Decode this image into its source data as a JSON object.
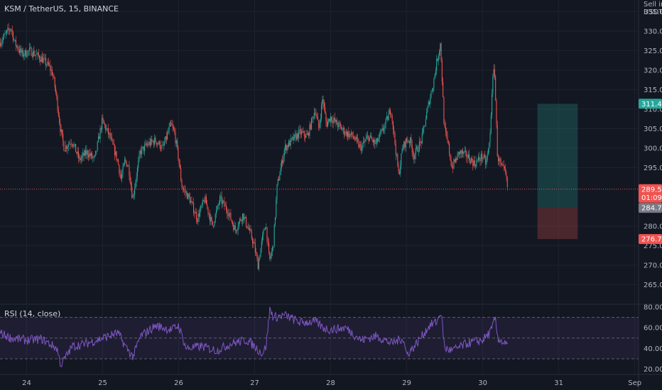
{
  "header": {
    "title": "KSM / TetherUS, 15, BINANCE",
    "currency_line1": "Sell in",
    "currency_line2": "USDT"
  },
  "rsi_panel": {
    "title": "RSI (14, close)"
  },
  "price_tags": {
    "target": "311.4",
    "current": "289.5",
    "countdown": "01:09",
    "entry": "284.7",
    "stop": "276.7"
  },
  "colors": {
    "background": "#131722",
    "up_candle": "#26a69a",
    "down_candle": "#ef5350",
    "rsi_line": "#7e57c2",
    "rsi_band": "#7e57c2",
    "profit_zone": "#26a69a",
    "loss_zone": "#ef5350",
    "tag_target": "#26a69a",
    "tag_current": "#ef5350",
    "tag_entry": "#787b86",
    "tag_stop": "#ef5350"
  },
  "chart_data": [
    {
      "type": "candlestick",
      "title": "KSM / TetherUS, 15, BINANCE",
      "ylabel": "USDT",
      "ylim": [
        260,
        338
      ],
      "y_ticks": [
        265,
        270,
        275,
        280,
        295,
        300,
        305,
        310,
        315,
        320,
        325,
        330,
        335
      ],
      "x_tick_labels": [
        "24",
        "25",
        "26",
        "27",
        "28",
        "29",
        "30",
        "31",
        "Sep"
      ],
      "x_tick_days": [
        24,
        25,
        26,
        27,
        28,
        29,
        30,
        31,
        32
      ],
      "x_range_days": [
        23.65,
        32.05
      ],
      "price_path_days": [
        23.65,
        23.8,
        23.85,
        23.95,
        24.05,
        24.2,
        24.3,
        24.35,
        24.4,
        24.45,
        24.5,
        24.6,
        24.7,
        24.8,
        24.9,
        24.95,
        25.0,
        25.1,
        25.2,
        25.25,
        25.3,
        25.35,
        25.4,
        25.45,
        25.5,
        25.6,
        25.7,
        25.8,
        25.9,
        25.95,
        26.0,
        26.05,
        26.15,
        26.25,
        26.35,
        26.45,
        26.55,
        26.65,
        26.75,
        26.85,
        26.95,
        27.0,
        27.05,
        27.1,
        27.15,
        27.2,
        27.25,
        27.3,
        27.4,
        27.5,
        27.6,
        27.7,
        27.8,
        27.85,
        27.9,
        27.95,
        28.0,
        28.1,
        28.2,
        28.3,
        28.4,
        28.5,
        28.6,
        28.7,
        28.8,
        28.9,
        28.95,
        29.0,
        29.05,
        29.1,
        29.2,
        29.3,
        29.35,
        29.4,
        29.45,
        29.5,
        29.55,
        29.6,
        29.7,
        29.8,
        29.9,
        30.0,
        30.05,
        30.1,
        30.13,
        30.16,
        30.2,
        30.25,
        30.3,
        30.33
      ],
      "price_path_values": [
        327,
        331,
        327,
        324,
        325,
        323,
        321,
        319,
        313,
        305,
        300,
        302,
        297,
        299,
        297,
        302,
        307,
        303,
        297,
        292,
        297,
        295,
        287,
        293,
        299,
        301,
        302,
        300,
        306,
        304,
        298,
        290,
        287,
        282,
        287,
        280,
        287,
        284,
        279,
        283,
        278,
        275,
        270,
        276,
        281,
        271,
        275,
        290,
        300,
        302,
        304,
        303,
        310,
        305,
        313,
        306,
        308,
        306,
        304,
        303,
        300,
        303,
        301,
        305,
        310,
        293,
        300,
        302,
        302,
        298,
        302,
        312,
        316,
        322,
        327,
        305,
        301,
        295,
        299,
        298,
        296,
        298,
        296,
        302,
        316,
        321,
        298,
        295,
        294,
        290
      ],
      "current_price": 289.5,
      "position": {
        "type": "long",
        "target": 311.4,
        "entry": 284.7,
        "stop": 276.7,
        "start_day": 30.72,
        "end_day": 31.25
      }
    },
    {
      "type": "line",
      "title": "RSI (14, close)",
      "ylim": [
        15,
        82
      ],
      "y_ticks": [
        20,
        40,
        60,
        80
      ],
      "bands": [
        30,
        50,
        70
      ],
      "x_range_days": [
        23.65,
        32.05
      ],
      "rsi_path_days": [
        23.65,
        23.8,
        24.0,
        24.2,
        24.4,
        24.45,
        24.6,
        24.8,
        25.0,
        25.2,
        25.3,
        25.4,
        25.5,
        25.7,
        25.9,
        26.0,
        26.1,
        26.3,
        26.5,
        26.7,
        26.9,
        27.0,
        27.1,
        27.15,
        27.2,
        27.25,
        27.4,
        27.6,
        27.8,
        27.9,
        28.0,
        28.2,
        28.4,
        28.6,
        28.8,
        28.95,
        29.0,
        29.1,
        29.3,
        29.4,
        29.45,
        29.5,
        29.6,
        29.8,
        30.0,
        30.05,
        30.12,
        30.16,
        30.2,
        30.33
      ],
      "rsi_path_values": [
        55,
        50,
        48,
        49,
        40,
        24,
        42,
        45,
        50,
        55,
        42,
        32,
        52,
        62,
        58,
        62,
        40,
        42,
        38,
        45,
        48,
        42,
        35,
        42,
        78,
        70,
        72,
        65,
        66,
        60,
        58,
        60,
        48,
        52,
        45,
        50,
        34,
        42,
        62,
        66,
        76,
        40,
        38,
        45,
        48,
        52,
        58,
        70,
        50,
        42
      ]
    }
  ]
}
